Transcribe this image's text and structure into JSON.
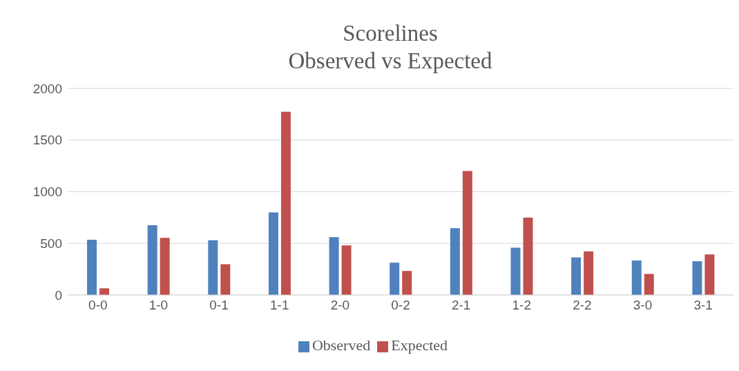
{
  "chart_data": {
    "type": "bar",
    "title": "Scorelines\nObserved vs Expected",
    "categories": [
      "0-0",
      "1-0",
      "0-1",
      "1-1",
      "2-0",
      "0-2",
      "2-1",
      "1-2",
      "2-2",
      "3-0",
      "3-1"
    ],
    "series": [
      {
        "name": "Observed",
        "color": "#4f81bd",
        "values": [
          535,
          676,
          530,
          800,
          560,
          313,
          647,
          458,
          364,
          334,
          327
        ]
      },
      {
        "name": "Expected",
        "color": "#c0504d",
        "values": [
          65,
          553,
          298,
          1774,
          480,
          233,
          1200,
          749,
          422,
          204,
          393
        ]
      }
    ],
    "ylim": [
      0,
      2000
    ],
    "yticks": [
      0,
      500,
      1000,
      1500,
      2000
    ],
    "grid": "y",
    "legend": "bottom"
  }
}
